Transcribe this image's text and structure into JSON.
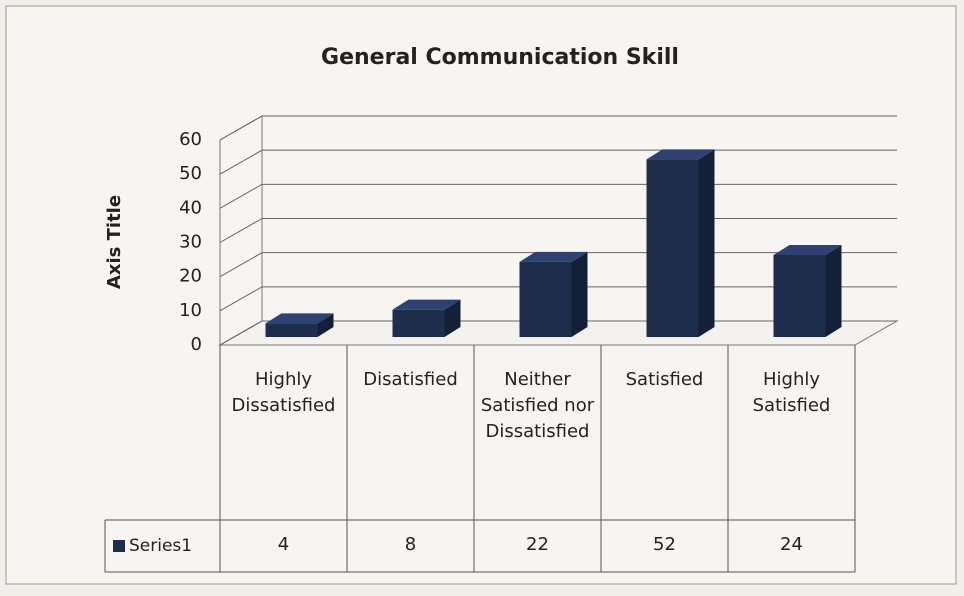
{
  "chart_data": {
    "type": "bar3d",
    "title": "General Communication Skill",
    "y_axis_title": "Axis Title",
    "categories": [
      "Highly Dissatisfied",
      "Disatisfied",
      "Neither Satisfied nor Dissatisfied",
      "Satisfied",
      "Highly Satisfied"
    ],
    "series": [
      {
        "name": "Series1",
        "color": "#1f2d4d",
        "values": [
          4,
          8,
          22,
          52,
          24
        ]
      }
    ],
    "ylim": [
      0,
      60
    ],
    "yticks": [
      0,
      10,
      20,
      30,
      40,
      50,
      60
    ],
    "grid": true,
    "data_table": true
  }
}
